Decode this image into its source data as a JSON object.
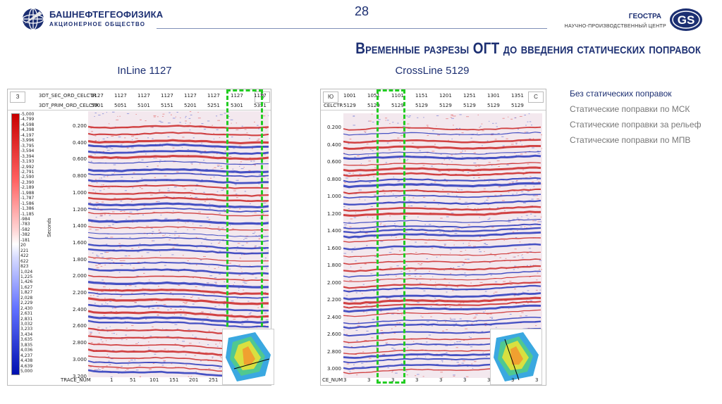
{
  "header": {
    "company_name": "БАШНЕФТЕГЕОФИЗИКА",
    "company_sub": "АКЦИОНЕРНОЕ ОБЩЕСТВО",
    "page_number": "28",
    "partner_name": "ГЕОСТРА",
    "partner_sub": "НАУЧНО-ПРОИЗВОДСТВЕННЫЙ ЦЕНТР",
    "partner_logo_text": "GS"
  },
  "title": "Временные разрезы ОГТ до введения статических поправок",
  "sections": {
    "left_label": "InLine 1127",
    "right_label": "CrossLine 5129"
  },
  "legend": [
    "Без статических поправок",
    "Статические поправки по МСК",
    "Статические поправки за рельеф",
    "Статические поправки по МПВ"
  ],
  "left_panel": {
    "corner_left": "З",
    "corner_right": "В",
    "row1_label": "3DT_SEC_ORD_CELCTR",
    "row2_label": "3DT_PRIM_ORD_CELCTR",
    "row1_values": [
      "1127",
      "1127",
      "1127",
      "1127",
      "1127",
      "1127",
      "1127",
      "1127"
    ],
    "row2_values": [
      "5001",
      "5051",
      "5101",
      "5151",
      "5201",
      "5251",
      "5301",
      "5351"
    ],
    "trace_label": "TRACE_NUM",
    "trace_values": [
      "1",
      "51",
      "101",
      "151",
      "201",
      "251"
    ],
    "y_ticks": [
      "0.200",
      "0.400",
      "0.600",
      "0.800",
      "1.000",
      "1.200",
      "1.400",
      "1.600",
      "1.800",
      "2.000",
      "2.200",
      "2.400",
      "2.600",
      "2.800",
      "3.000",
      "3.200"
    ],
    "y_axis_label": "Seconds",
    "colorbar_labels": [
      "-5,000",
      "-4,799",
      "-4,598",
      "-4,398",
      "-4,197",
      "-3,996",
      "-3,795",
      "-3,594",
      "-3,394",
      "-3,193",
      "-2,992",
      "-2,791",
      "-2,590",
      "-2,390",
      "-2,189",
      "-1,988",
      "-1,787",
      "-1,586",
      "-1,386",
      "-1,185",
      "-984",
      "-783",
      "-582",
      "-382",
      "-181",
      "20",
      "221",
      "422",
      "622",
      "823",
      "1,024",
      "1,225",
      "1,426",
      "1,627",
      "1,827",
      "2,028",
      "2,229",
      "2,430",
      "2,631",
      "2,831",
      "3,032",
      "3,233",
      "3,434",
      "3,635",
      "3,835",
      "4,036",
      "4,237",
      "4,438",
      "4,639",
      "5,000"
    ]
  },
  "right_panel": {
    "corner_left": "Ю",
    "corner_right": "С",
    "row1_label": "",
    "row2_label": "CELCTR",
    "row1_values": [
      "1001",
      "1051",
      "1101",
      "1151",
      "1201",
      "1251",
      "1301",
      "1351"
    ],
    "row2_values": [
      "5129",
      "5129",
      "5129",
      "5129",
      "5129",
      "5129",
      "5129",
      "5129"
    ],
    "trace_label": "CE_NUM",
    "trace_values": [
      "3",
      "3",
      "3",
      "3",
      "3",
      "3",
      "3",
      "3",
      "3"
    ],
    "y_ticks": [
      "0.200",
      "0.400",
      "0.600",
      "0.800",
      "1.000",
      "1.200",
      "1.400",
      "1.600",
      "1.800",
      "2.000",
      "2.200",
      "2.400",
      "2.600",
      "2.800",
      "3.000"
    ]
  },
  "colors": {
    "brand": "#1c2f72",
    "highlight": "#22cc22",
    "positive": "#d01010",
    "negative": "#1020c0"
  }
}
